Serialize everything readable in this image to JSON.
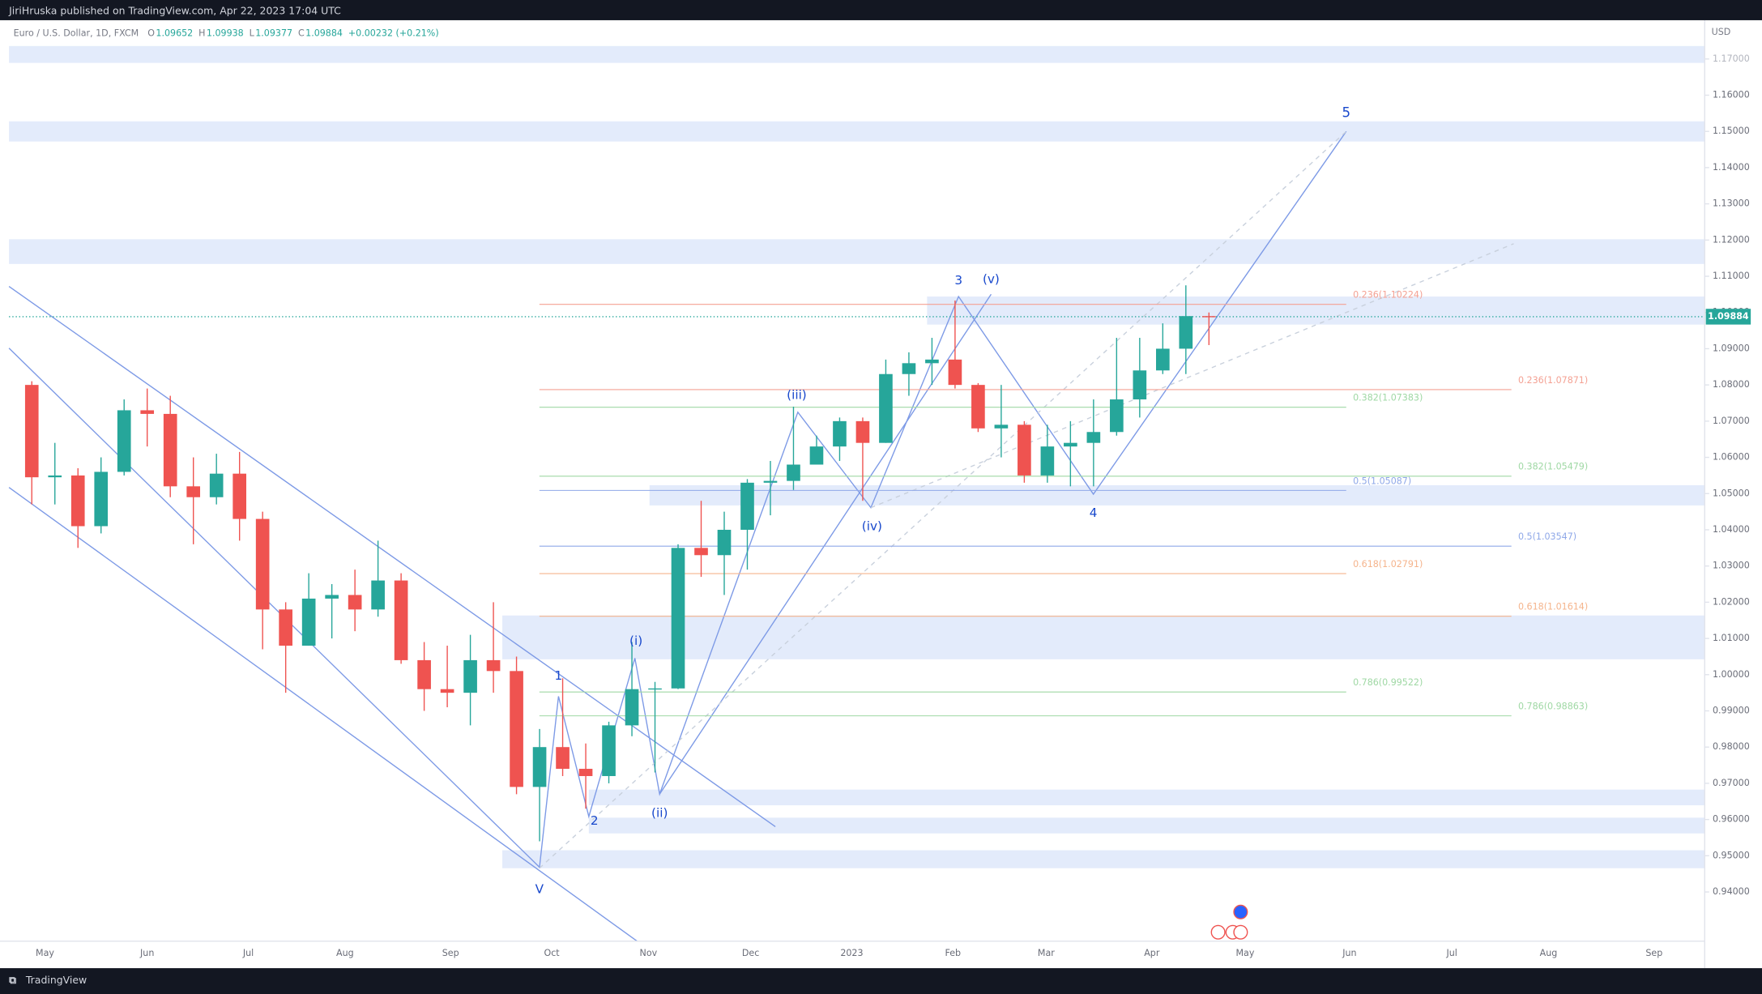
{
  "header": {
    "title": "JiriHruska published on TradingView.com, Apr 22, 2023 17:04 UTC"
  },
  "footer": {
    "brand": "TradingView"
  },
  "chart_data": {
    "type": "candlestick",
    "legend": {
      "symbol": "Euro / U.S. Dollar, 1D, FXCM",
      "items": [
        {
          "key": "O",
          "value": 1.09652
        },
        {
          "key": "H",
          "value": 1.09938
        },
        {
          "key": "L",
          "value": 1.09377
        },
        {
          "key": "C",
          "value": 1.09884
        }
      ],
      "change": "+0.00232 (+0.21%)"
    },
    "currency": "USD",
    "up_color": "#26a69a",
    "down_color": "#ef5350",
    "last": 1.09884,
    "ylim": [
      0.9264,
      1.1807
    ],
    "yticks": [
      {
        "value": 0.94,
        "label": "0.94000"
      },
      {
        "value": 0.95,
        "label": "0.95000"
      },
      {
        "value": 0.96,
        "label": "0.96000"
      },
      {
        "value": 0.97,
        "label": "0.97000"
      },
      {
        "value": 0.98,
        "label": "0.98000"
      },
      {
        "value": 0.99,
        "label": "0.99000"
      },
      {
        "value": 1.0,
        "label": "1.00000"
      },
      {
        "value": 1.01,
        "label": "1.01000"
      },
      {
        "value": 1.02,
        "label": "1.02000"
      },
      {
        "value": 1.03,
        "label": "1.03000"
      },
      {
        "value": 1.04,
        "label": "1.04000"
      },
      {
        "value": 1.05,
        "label": "1.05000"
      },
      {
        "value": 1.06,
        "label": "1.06000"
      },
      {
        "value": 1.07,
        "label": "1.07000"
      },
      {
        "value": 1.08,
        "label": "1.08000"
      },
      {
        "value": 1.09,
        "label": "1.09000"
      },
      {
        "value": 1.1,
        "label": "1.10000"
      },
      {
        "value": 1.11,
        "label": "1.11000"
      },
      {
        "value": 1.12,
        "label": "1.12000"
      },
      {
        "value": 1.13,
        "label": "1.13000"
      },
      {
        "value": 1.14,
        "label": "1.14000"
      },
      {
        "value": 1.15,
        "label": "1.15000"
      },
      {
        "value": 1.16,
        "label": "1.16000"
      },
      {
        "value": 1.17,
        "label": "1.17000"
      }
    ],
    "xticks": [
      "May",
      "Jun",
      "Jul",
      "Aug",
      "Sep",
      "Oct",
      "Nov",
      "Dec",
      "2023",
      "Feb",
      "Mar",
      "Apr",
      "May",
      "Jun",
      "Jul",
      "Aug",
      "Sep"
    ],
    "candles": [
      {
        "o": 1.08,
        "h": 1.081,
        "l": 1.047,
        "c": 1.0545
      },
      {
        "o": 1.0545,
        "h": 1.064,
        "l": 1.047,
        "c": 1.055
      },
      {
        "o": 1.055,
        "h": 1.057,
        "l": 1.035,
        "c": 1.041
      },
      {
        "o": 1.041,
        "h": 1.06,
        "l": 1.039,
        "c": 1.056
      },
      {
        "o": 1.056,
        "h": 1.076,
        "l": 1.055,
        "c": 1.073
      },
      {
        "o": 1.073,
        "h": 1.079,
        "l": 1.063,
        "c": 1.072
      },
      {
        "o": 1.072,
        "h": 1.077,
        "l": 1.049,
        "c": 1.052
      },
      {
        "o": 1.052,
        "h": 1.06,
        "l": 1.036,
        "c": 1.049
      },
      {
        "o": 1.049,
        "h": 1.061,
        "l": 1.047,
        "c": 1.0555
      },
      {
        "o": 1.0555,
        "h": 1.0615,
        "l": 1.037,
        "c": 1.043
      },
      {
        "o": 1.043,
        "h": 1.045,
        "l": 1.007,
        "c": 1.018
      },
      {
        "o": 1.018,
        "h": 1.02,
        "l": 0.995,
        "c": 1.008
      },
      {
        "o": 1.008,
        "h": 1.028,
        "l": 1.008,
        "c": 1.021
      },
      {
        "o": 1.021,
        "h": 1.025,
        "l": 1.01,
        "c": 1.022
      },
      {
        "o": 1.022,
        "h": 1.029,
        "l": 1.012,
        "c": 1.018
      },
      {
        "o": 1.018,
        "h": 1.037,
        "l": 1.016,
        "c": 1.026
      },
      {
        "o": 1.026,
        "h": 1.028,
        "l": 1.003,
        "c": 1.004
      },
      {
        "o": 1.004,
        "h": 1.009,
        "l": 0.99,
        "c": 0.996
      },
      {
        "o": 0.996,
        "h": 1.008,
        "l": 0.991,
        "c": 0.995
      },
      {
        "o": 0.995,
        "h": 1.011,
        "l": 0.986,
        "c": 1.004
      },
      {
        "o": 1.004,
        "h": 1.02,
        "l": 0.995,
        "c": 1.001
      },
      {
        "o": 1.001,
        "h": 1.005,
        "l": 0.967,
        "c": 0.969
      },
      {
        "o": 0.969,
        "h": 0.985,
        "l": 0.954,
        "c": 0.98
      },
      {
        "o": 0.98,
        "h": 0.999,
        "l": 0.972,
        "c": 0.974
      },
      {
        "o": 0.974,
        "h": 0.981,
        "l": 0.963,
        "c": 0.972
      },
      {
        "o": 0.972,
        "h": 0.987,
        "l": 0.97,
        "c": 0.986
      },
      {
        "o": 0.986,
        "h": 1.009,
        "l": 0.983,
        "c": 0.996
      },
      {
        "o": 0.996,
        "h": 0.998,
        "l": 0.973,
        "c": 0.9962
      },
      {
        "o": 0.9962,
        "h": 1.036,
        "l": 0.996,
        "c": 1.035
      },
      {
        "o": 1.035,
        "h": 1.048,
        "l": 1.027,
        "c": 1.033
      },
      {
        "o": 1.033,
        "h": 1.045,
        "l": 1.022,
        "c": 1.04
      },
      {
        "o": 1.04,
        "h": 1.054,
        "l": 1.029,
        "c": 1.053
      },
      {
        "o": 1.053,
        "h": 1.059,
        "l": 1.044,
        "c": 1.0535
      },
      {
        "o": 1.0535,
        "h": 1.074,
        "l": 1.051,
        "c": 1.058
      },
      {
        "o": 1.058,
        "h": 1.066,
        "l": 1.058,
        "c": 1.063
      },
      {
        "o": 1.063,
        "h": 1.071,
        "l": 1.059,
        "c": 1.07
      },
      {
        "o": 1.07,
        "h": 1.071,
        "l": 1.048,
        "c": 1.064
      },
      {
        "o": 1.064,
        "h": 1.087,
        "l": 1.064,
        "c": 1.083
      },
      {
        "o": 1.083,
        "h": 1.089,
        "l": 1.077,
        "c": 1.086
      },
      {
        "o": 1.086,
        "h": 1.093,
        "l": 1.08,
        "c": 1.087
      },
      {
        "o": 1.087,
        "h": 1.1033,
        "l": 1.079,
        "c": 1.08
      },
      {
        "o": 1.08,
        "h": 1.0805,
        "l": 1.067,
        "c": 1.068
      },
      {
        "o": 1.068,
        "h": 1.08,
        "l": 1.06,
        "c": 1.069
      },
      {
        "o": 1.069,
        "h": 1.07,
        "l": 1.053,
        "c": 1.055
      },
      {
        "o": 1.055,
        "h": 1.069,
        "l": 1.053,
        "c": 1.063
      },
      {
        "o": 1.063,
        "h": 1.07,
        "l": 1.052,
        "c": 1.064
      },
      {
        "o": 1.064,
        "h": 1.076,
        "l": 1.052,
        "c": 1.067
      },
      {
        "o": 1.067,
        "h": 1.093,
        "l": 1.066,
        "c": 1.076
      },
      {
        "o": 1.076,
        "h": 1.093,
        "l": 1.071,
        "c": 1.084
      },
      {
        "o": 1.084,
        "h": 1.097,
        "l": 1.083,
        "c": 1.09
      },
      {
        "o": 1.09,
        "h": 1.1075,
        "l": 1.083,
        "c": 1.099
      },
      {
        "o": 1.099,
        "h": 1.1,
        "l": 1.091,
        "c": 1.09884
      }
    ],
    "fibs": [
      {
        "label": "0.236(1.10224)",
        "price": 1.10224,
        "color": "#f4a193"
      },
      {
        "label": "0.382(1.07383)",
        "price": 1.07383,
        "color": "#9fd8a4"
      },
      {
        "label": "0.5(1.05087)",
        "price": 1.05087,
        "color": "#8fa8e8"
      },
      {
        "label": "0.618(1.02791)",
        "price": 1.02791,
        "color": "#f5b48c"
      },
      {
        "label": "0.786(0.99522)",
        "price": 0.99522,
        "color": "#9fd8a4"
      },
      {
        "label": "0.236(1.07871)",
        "price": 1.07871,
        "color": "#f4a193"
      },
      {
        "label": "0.382(1.05479)",
        "price": 1.05479,
        "color": "#9fd8a4"
      },
      {
        "label": "0.5(1.03547)",
        "price": 1.03547,
        "color": "#8fa8e8"
      },
      {
        "label": "0.618(1.01614)",
        "price": 1.01614,
        "color": "#f5b48c"
      },
      {
        "label": "0.786(0.98863)",
        "price": 0.98863,
        "color": "#9fd8a4"
      }
    ],
    "waves": [
      "V",
      "1",
      "2",
      "(i)",
      "(ii)",
      "(iii)",
      "(iv)",
      "3",
      "(v)",
      "4",
      "5"
    ]
  }
}
